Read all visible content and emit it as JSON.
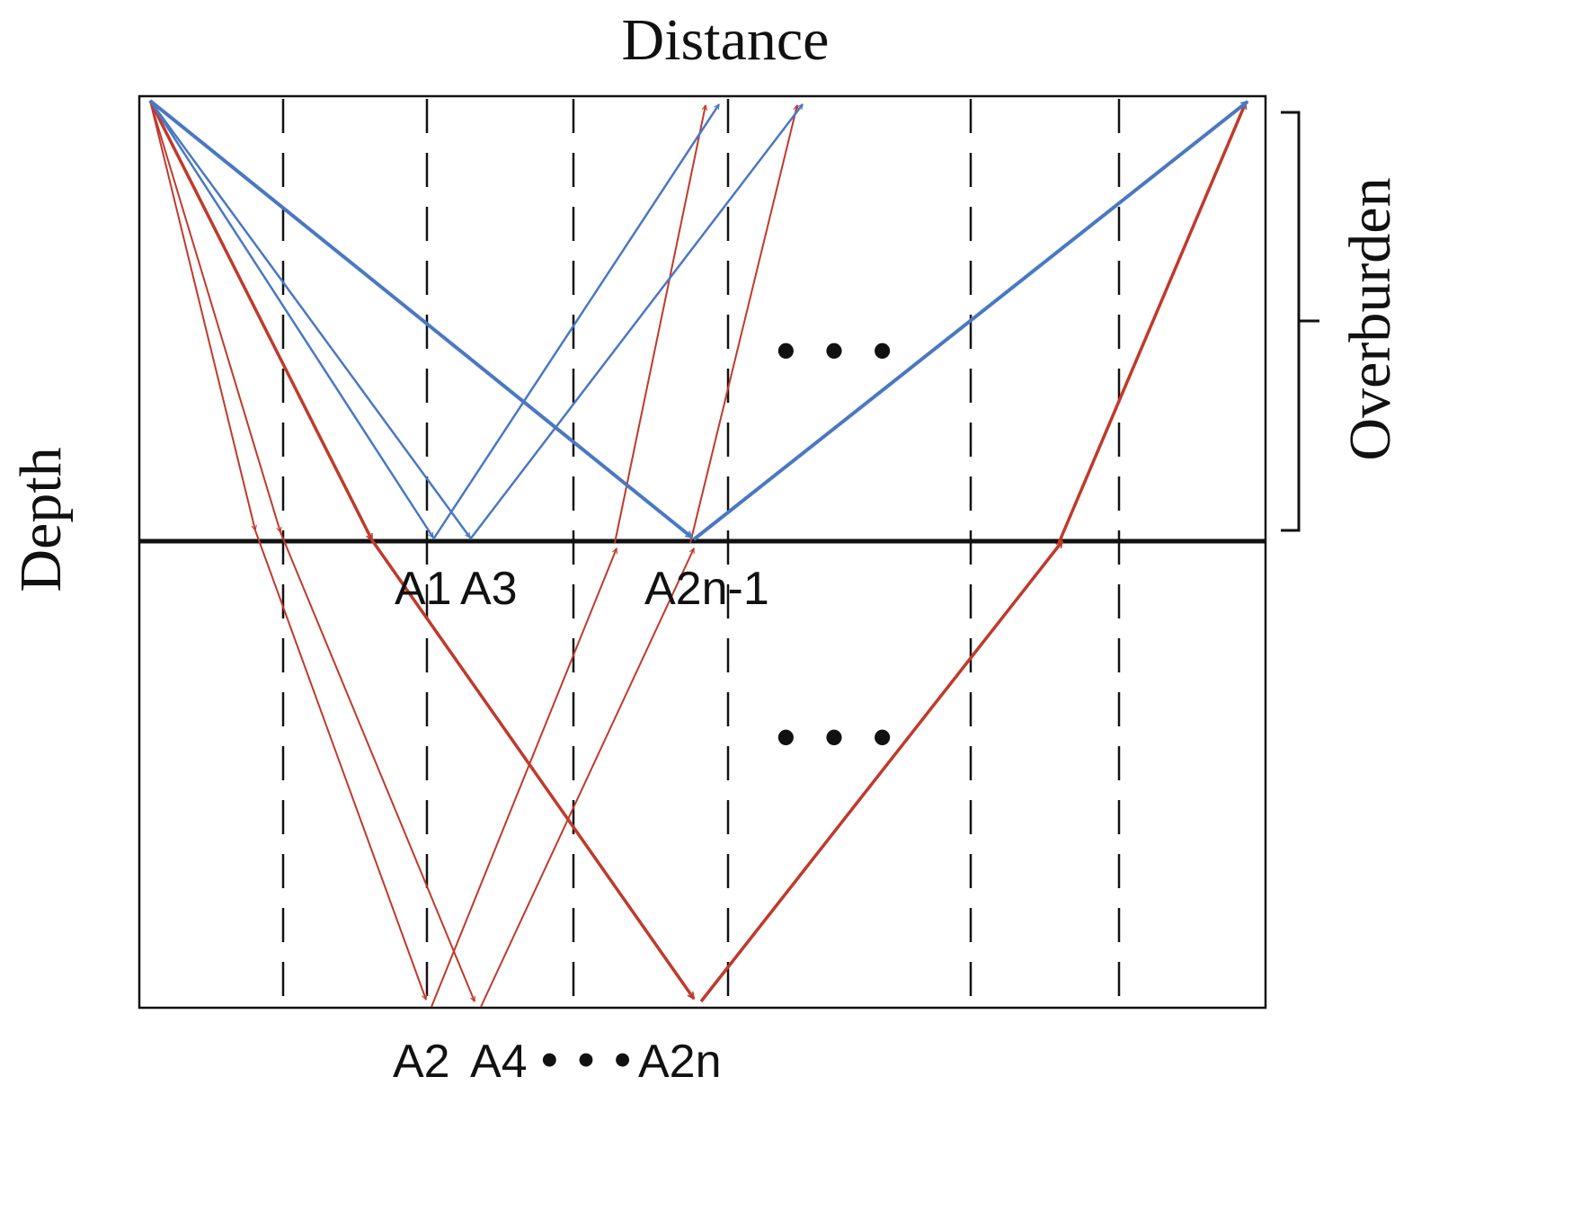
{
  "labels": {
    "distance": "Distance",
    "depth": "Depth",
    "overburden": "Overburden",
    "a1": "A1",
    "a3": "A3",
    "a2n_minus_1": "A2n-1",
    "a2": "A2",
    "a4": "A4",
    "a2n": "A2n",
    "ellipsis": "• • •"
  },
  "colors": {
    "blue_ray": "#4a78c2",
    "red_ray": "#c0392b",
    "line": "#111111"
  }
}
